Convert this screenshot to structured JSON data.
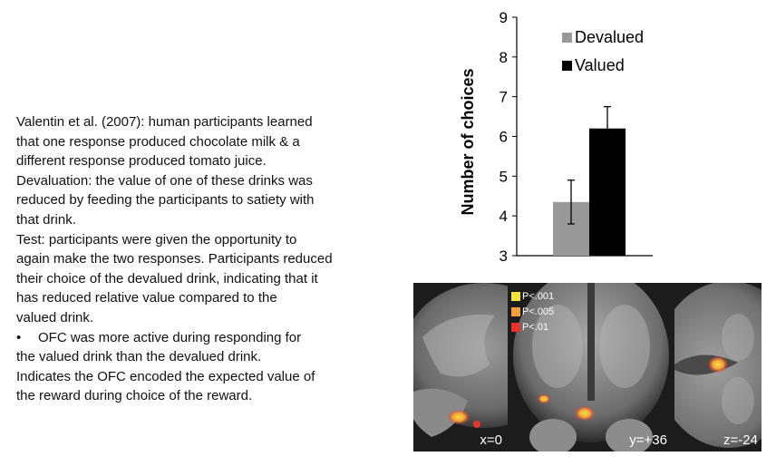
{
  "text": {
    "lines": [
      "Valentin et al. (2007): human participants learned",
      "that one response produced chocolate milk & a",
      "different response produced tomato juice.",
      "Devaluation: the value of one of these drinks was",
      "reduced by feeding the participants to satiety with",
      "that drink.",
      "Test: participants were given the opportunity to",
      "again make the two responses. Participants reduced",
      "their choice of the devalued drink, indicating that it",
      "has reduced relative value compared to the",
      "valued drink."
    ],
    "bullet_symbol": "•",
    "bullet_line": "OFC was more active during responding for",
    "after_lines": [
      "the valued drink than the devalued drink.",
      "Indicates the OFC encoded the expected value of",
      "the reward during choice of the reward."
    ]
  },
  "chart_data": {
    "type": "bar",
    "categories": [
      "Devalued",
      "Valued"
    ],
    "values": [
      4.35,
      6.2
    ],
    "error": [
      0.55,
      0.55
    ],
    "colors": [
      "#999999",
      "#000000"
    ],
    "ylabel": "Number of choices",
    "ylim": [
      3,
      9
    ],
    "yticks": [
      3,
      4,
      5,
      6,
      7,
      8,
      9
    ],
    "legend": [
      "Devalued",
      "Valued"
    ],
    "legend_position": "top-right",
    "grid": false
  },
  "brain": {
    "legend": [
      {
        "label": "P<.001",
        "color": "#f5e33c"
      },
      {
        "label": "P<.005",
        "color": "#f2a03c"
      },
      {
        "label": "P<.01",
        "color": "#e8352a"
      }
    ],
    "panels": {
      "sagittal": {
        "coord": "x=0"
      },
      "coronal": {
        "coord": "y=+36"
      },
      "axial": {
        "coord": "z=-24"
      }
    }
  }
}
